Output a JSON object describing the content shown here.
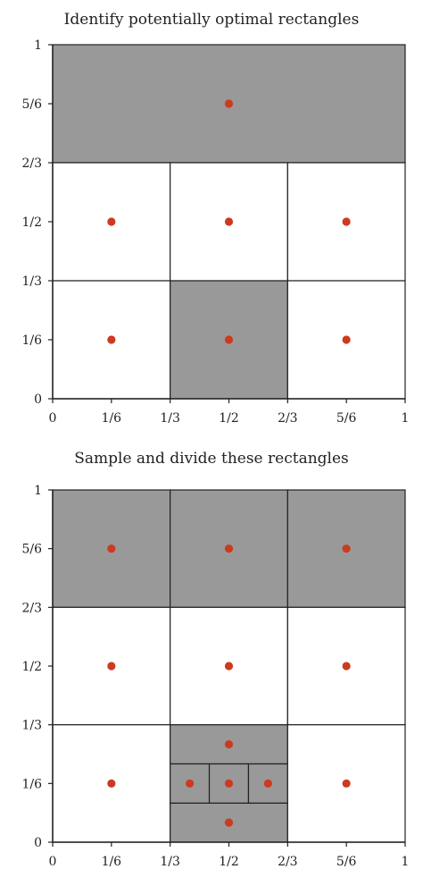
{
  "panels": [
    {
      "title": "Identify potentially optimal rectangles",
      "y_ticks": [
        "0",
        "1/6",
        "1/3",
        "1/2",
        "2/3",
        "5/6",
        "1"
      ],
      "x_ticks": [
        "0",
        "1/6",
        "1/3",
        "1/2",
        "2/3",
        "5/6",
        "1"
      ],
      "rects": [
        {
          "x": [
            0,
            1
          ],
          "y": [
            0.6667,
            1
          ],
          "shaded": true
        },
        {
          "x": [
            0,
            0.3333
          ],
          "y": [
            0.3333,
            0.6667
          ],
          "shaded": false
        },
        {
          "x": [
            0.3333,
            0.6667
          ],
          "y": [
            0.3333,
            0.6667
          ],
          "shaded": false
        },
        {
          "x": [
            0.6667,
            1
          ],
          "y": [
            0.3333,
            0.6667
          ],
          "shaded": false
        },
        {
          "x": [
            0,
            0.3333
          ],
          "y": [
            0,
            0.3333
          ],
          "shaded": false
        },
        {
          "x": [
            0.3333,
            0.6667
          ],
          "y": [
            0,
            0.3333
          ],
          "shaded": true
        },
        {
          "x": [
            0.6667,
            1
          ],
          "y": [
            0,
            0.3333
          ],
          "shaded": false
        }
      ],
      "points": [
        [
          0.5,
          0.8333
        ],
        [
          0.1667,
          0.5
        ],
        [
          0.5,
          0.5
        ],
        [
          0.8333,
          0.5
        ],
        [
          0.1667,
          0.1667
        ],
        [
          0.5,
          0.1667
        ],
        [
          0.8333,
          0.1667
        ]
      ]
    },
    {
      "title": "Sample and divide these rectangles",
      "y_ticks": [
        "0",
        "1/6",
        "1/3",
        "1/2",
        "2/3",
        "5/6",
        "1"
      ],
      "x_ticks": [
        "0",
        "1/6",
        "1/3",
        "1/2",
        "2/3",
        "5/6",
        "1"
      ],
      "rects": [
        {
          "x": [
            0,
            0.3333
          ],
          "y": [
            0.6667,
            1
          ],
          "shaded": true
        },
        {
          "x": [
            0.3333,
            0.6667
          ],
          "y": [
            0.6667,
            1
          ],
          "shaded": true
        },
        {
          "x": [
            0.6667,
            1
          ],
          "y": [
            0.6667,
            1
          ],
          "shaded": true
        },
        {
          "x": [
            0,
            0.3333
          ],
          "y": [
            0.3333,
            0.6667
          ],
          "shaded": false
        },
        {
          "x": [
            0.3333,
            0.6667
          ],
          "y": [
            0.3333,
            0.6667
          ],
          "shaded": false
        },
        {
          "x": [
            0.6667,
            1
          ],
          "y": [
            0.3333,
            0.6667
          ],
          "shaded": false
        },
        {
          "x": [
            0,
            0.3333
          ],
          "y": [
            0,
            0.3333
          ],
          "shaded": false
        },
        {
          "x": [
            0.3333,
            0.6667
          ],
          "y": [
            0.2222,
            0.3333
          ],
          "shaded": true
        },
        {
          "x": [
            0.3333,
            0.6667
          ],
          "y": [
            0,
            0.1111
          ],
          "shaded": true
        },
        {
          "x": [
            0.3333,
            0.4444
          ],
          "y": [
            0.1111,
            0.2222
          ],
          "shaded": true
        },
        {
          "x": [
            0.4444,
            0.5556
          ],
          "y": [
            0.1111,
            0.2222
          ],
          "shaded": true
        },
        {
          "x": [
            0.5556,
            0.6667
          ],
          "y": [
            0.1111,
            0.2222
          ],
          "shaded": true
        },
        {
          "x": [
            0.6667,
            1
          ],
          "y": [
            0,
            0.3333
          ],
          "shaded": false
        }
      ],
      "points": [
        [
          0.1667,
          0.8333
        ],
        [
          0.5,
          0.8333
        ],
        [
          0.8333,
          0.8333
        ],
        [
          0.1667,
          0.5
        ],
        [
          0.5,
          0.5
        ],
        [
          0.8333,
          0.5
        ],
        [
          0.1667,
          0.1667
        ],
        [
          0.3889,
          0.1667
        ],
        [
          0.5,
          0.1667
        ],
        [
          0.6111,
          0.1667
        ],
        [
          0.8333,
          0.1667
        ],
        [
          0.5,
          0.2778
        ],
        [
          0.5,
          0.0556
        ]
      ]
    }
  ],
  "colors": {
    "shaded": "#999999",
    "point": "#cc3a1f",
    "line": "#222222"
  }
}
